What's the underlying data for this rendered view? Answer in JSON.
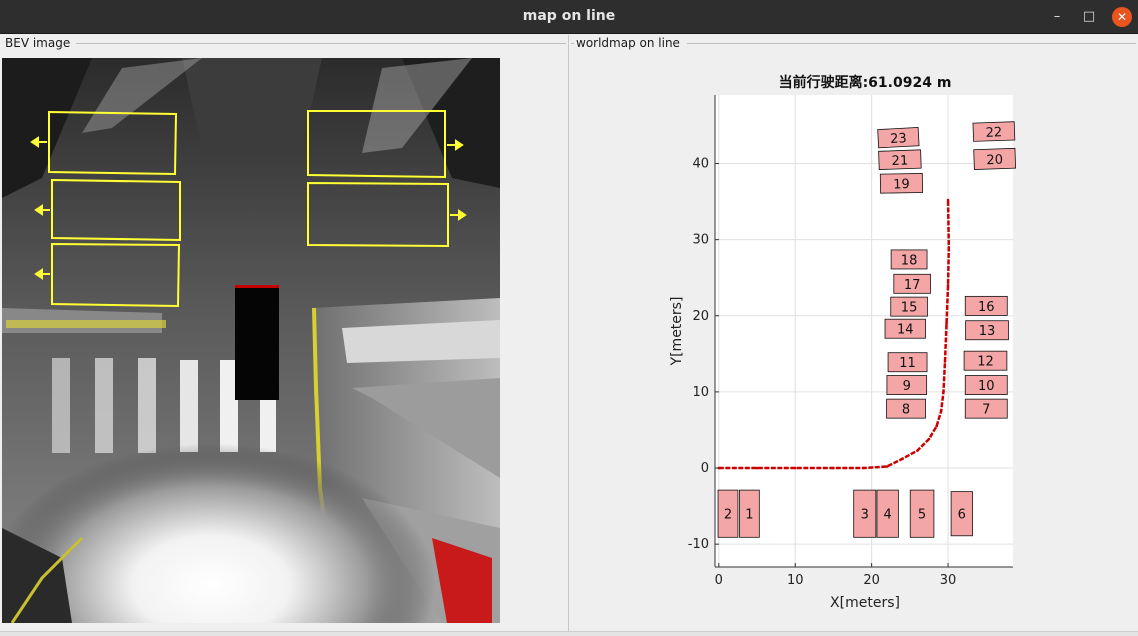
{
  "window": {
    "title": "map on line",
    "buttons": {
      "minimize": "–",
      "maximize": "□",
      "close": "✕"
    }
  },
  "panels": {
    "bev": {
      "label": "BEV image"
    },
    "worldmap": {
      "label": "worldmap on line"
    }
  },
  "colors": {
    "titlebar": "#2e2e2e",
    "close_button": "#e9541f",
    "slot_box": "#ffff33",
    "obstacle_fill": "#f4a6a6",
    "trajectory": "#cc0000"
  },
  "chart_data": {
    "type": "scatter",
    "title": "当前行驶距离:61.0924 m",
    "xlabel": "X[meters]",
    "ylabel": "Y[meters]",
    "xlim": [
      -0.5,
      38.5
    ],
    "ylim": [
      -13,
      49
    ],
    "xticks": [
      0,
      10,
      20,
      30
    ],
    "yticks": [
      -10,
      0,
      10,
      20,
      30,
      40
    ],
    "grid": true,
    "trajectory": [
      [
        0,
        0
      ],
      [
        5,
        0
      ],
      [
        10,
        0
      ],
      [
        15,
        0
      ],
      [
        19,
        0
      ],
      [
        22,
        0.2
      ],
      [
        24,
        1.2
      ],
      [
        26,
        2.3
      ],
      [
        27.5,
        3.8
      ],
      [
        28.5,
        5.5
      ],
      [
        29.1,
        7.5
      ],
      [
        29.4,
        10
      ],
      [
        29.6,
        14
      ],
      [
        29.8,
        19
      ],
      [
        30,
        24
      ],
      [
        30.1,
        29
      ],
      [
        30,
        35.2
      ]
    ],
    "obstacles": [
      {
        "id": "1",
        "x": 4,
        "y": -6,
        "w": 2.6,
        "h": 6.2,
        "angle": 0
      },
      {
        "id": "2",
        "x": 1.2,
        "y": -6,
        "w": 2.6,
        "h": 6.2,
        "angle": 0
      },
      {
        "id": "3",
        "x": 19.1,
        "y": -6,
        "w": 2.9,
        "h": 6.2,
        "angle": 0
      },
      {
        "id": "4",
        "x": 22.1,
        "y": -6,
        "w": 2.8,
        "h": 6.2,
        "angle": 0
      },
      {
        "id": "5",
        "x": 26.6,
        "y": -6,
        "w": 3.1,
        "h": 6.2,
        "angle": 0
      },
      {
        "id": "6",
        "x": 31.8,
        "y": -6,
        "w": 2.8,
        "h": 5.8,
        "angle": 0
      },
      {
        "id": "7",
        "x": 35,
        "y": 7.8,
        "w": 5.5,
        "h": 2.5,
        "angle": 0
      },
      {
        "id": "8",
        "x": 24.5,
        "y": 7.8,
        "w": 5.1,
        "h": 2.5,
        "angle": 0
      },
      {
        "id": "9",
        "x": 24.6,
        "y": 10.9,
        "w": 5.2,
        "h": 2.5,
        "angle": 0
      },
      {
        "id": "10",
        "x": 35,
        "y": 10.9,
        "w": 5.5,
        "h": 2.5,
        "angle": 0
      },
      {
        "id": "11",
        "x": 24.7,
        "y": 13.9,
        "w": 5.1,
        "h": 2.5,
        "angle": 0
      },
      {
        "id": "12",
        "x": 34.9,
        "y": 14.1,
        "w": 5.6,
        "h": 2.5,
        "angle": 0
      },
      {
        "id": "13",
        "x": 35.1,
        "y": 18.1,
        "w": 5.6,
        "h": 2.5,
        "angle": 0
      },
      {
        "id": "14",
        "x": 24.4,
        "y": 18.3,
        "w": 5.3,
        "h": 2.5,
        "angle": 0
      },
      {
        "id": "15",
        "x": 24.9,
        "y": 21.2,
        "w": 4.8,
        "h": 2.5,
        "angle": 0
      },
      {
        "id": "16",
        "x": 35,
        "y": 21.3,
        "w": 5.5,
        "h": 2.5,
        "angle": 0
      },
      {
        "id": "17",
        "x": 25.3,
        "y": 24.2,
        "w": 4.8,
        "h": 2.5,
        "angle": 0
      },
      {
        "id": "18",
        "x": 24.9,
        "y": 27.4,
        "w": 4.7,
        "h": 2.5,
        "angle": 0
      },
      {
        "id": "19",
        "x": 23.9,
        "y": 37.4,
        "w": 5.5,
        "h": 2.5,
        "angle": -1
      },
      {
        "id": "20",
        "x": 36.1,
        "y": 40.6,
        "w": 5.4,
        "h": 2.6,
        "angle": -2
      },
      {
        "id": "21",
        "x": 23.7,
        "y": 40.5,
        "w": 5.5,
        "h": 2.4,
        "angle": -2
      },
      {
        "id": "22",
        "x": 36,
        "y": 44.2,
        "w": 5.4,
        "h": 2.4,
        "angle": -2
      },
      {
        "id": "23",
        "x": 23.5,
        "y": 43.4,
        "w": 5.3,
        "h": 2.4,
        "angle": -3
      }
    ]
  }
}
